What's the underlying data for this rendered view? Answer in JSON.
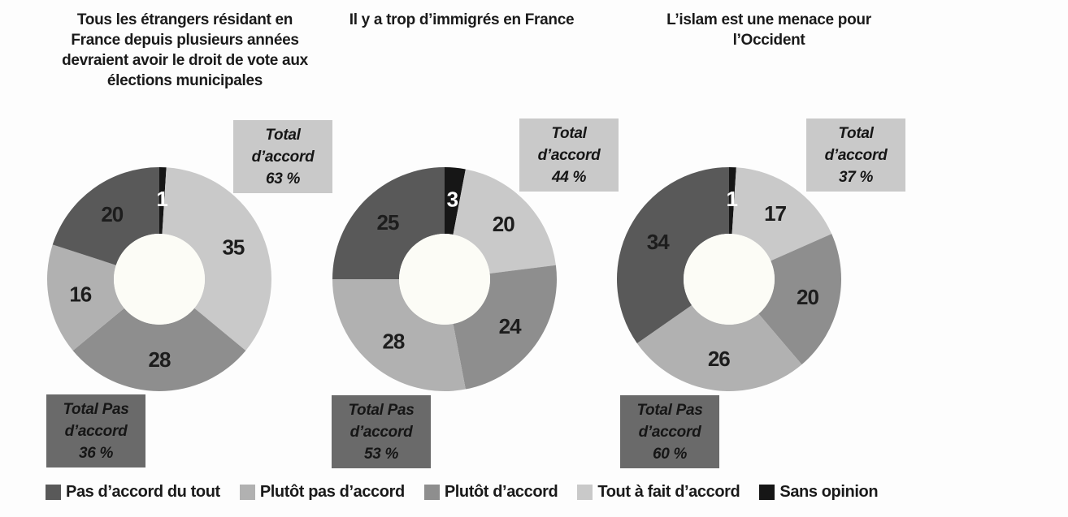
{
  "page": {
    "background": "#fdfdfd"
  },
  "colors": {
    "text": "#1a1a1a",
    "pas_daccord_du_tout": "#595959",
    "plutot_pas_daccord": "#b1b1b1",
    "plutot_daccord": "#8e8e8e",
    "tout_a_fait_daccord": "#c9c9c9",
    "sans_opinion": "#161616",
    "agree_box_bg": "#c9c9c9",
    "disagree_box_bg": "#6a6a6a",
    "donut_hole": "#fcfcf6",
    "slice_label_dark": "#1d1d1d",
    "slice_label_light": "#ffffff"
  },
  "legend": {
    "items": [
      {
        "label": "Pas d’accord du tout",
        "color_key": "pas_daccord_du_tout"
      },
      {
        "label": "Plutôt pas d’accord",
        "color_key": "plutot_pas_daccord"
      },
      {
        "label": "Plutôt d’accord",
        "color_key": "plutot_daccord"
      },
      {
        "label": "Tout à fait d’accord",
        "color_key": "tout_a_fait_daccord"
      },
      {
        "label": "Sans opinion",
        "color_key": "sans_opinion"
      }
    ]
  },
  "chart_data": [
    {
      "type": "pie",
      "subtype": "donut",
      "unit": "%",
      "title": "Tous les étrangers résidant en France depuis plusieurs années devraient avoir le droit de vote aux élections municipales",
      "title_lines": [
        "Tous les étrangers résidant en",
        "France depuis plusieurs années",
        "devraient avoir le droit de vote aux",
        "élections municipales"
      ],
      "slices": [
        {
          "category": "Sans opinion",
          "value": 1,
          "color_key": "sans_opinion",
          "label_light": true
        },
        {
          "category": "Tout à fait d’accord",
          "value": 35,
          "color_key": "tout_a_fait_daccord"
        },
        {
          "category": "Plutôt d’accord",
          "value": 28,
          "color_key": "plutot_daccord"
        },
        {
          "category": "Plutôt pas d’accord",
          "value": 16,
          "color_key": "plutot_pas_daccord"
        },
        {
          "category": "Pas d’accord du tout",
          "value": 20,
          "color_key": "pas_daccord_du_tout"
        }
      ],
      "agree_box": {
        "line1": "Total",
        "line2": "d’accord",
        "line3": "63 %"
      },
      "disagree_box": {
        "line1": "Total Pas",
        "line2": "d’accord",
        "line3": "36 %"
      }
    },
    {
      "type": "pie",
      "subtype": "donut",
      "unit": "%",
      "title": "Il y a trop d’immigrés en France",
      "title_lines": [
        "Il y a trop d’immigrés en France"
      ],
      "slices": [
        {
          "category": "Sans opinion",
          "value": 3,
          "color_key": "sans_opinion",
          "label_light": true
        },
        {
          "category": "Tout à fait d’accord",
          "value": 20,
          "color_key": "tout_a_fait_daccord"
        },
        {
          "category": "Plutôt d’accord",
          "value": 24,
          "color_key": "plutot_daccord"
        },
        {
          "category": "Plutôt pas d’accord",
          "value": 28,
          "color_key": "plutot_pas_daccord"
        },
        {
          "category": "Pas d’accord du tout",
          "value": 25,
          "color_key": "pas_daccord_du_tout"
        }
      ],
      "agree_box": {
        "line1": "Total",
        "line2": "d’accord",
        "line3": "44 %"
      },
      "disagree_box": {
        "line1": "Total Pas",
        "line2": "d’accord",
        "line3": "53 %"
      }
    },
    {
      "type": "pie",
      "subtype": "donut",
      "unit": "%",
      "title": "L’islam est une menace pour l’Occident",
      "title_lines": [
        "L’islam est une menace pour",
        "l’Occident"
      ],
      "slices": [
        {
          "category": "Sans opinion",
          "value": 1,
          "color_key": "sans_opinion",
          "label_light": true
        },
        {
          "category": "Tout à fait d’accord",
          "value": 17,
          "color_key": "tout_a_fait_daccord"
        },
        {
          "category": "Plutôt d’accord",
          "value": 20,
          "color_key": "plutot_daccord"
        },
        {
          "category": "Plutôt pas d’accord",
          "value": 26,
          "color_key": "plutot_pas_daccord"
        },
        {
          "category": "Pas d’accord du tout",
          "value": 34,
          "color_key": "pas_daccord_du_tout"
        }
      ],
      "agree_box": {
        "line1": "Total",
        "line2": "d’accord",
        "line3": "37 %"
      },
      "disagree_box": {
        "line1": "Total Pas",
        "line2": "d’accord",
        "line3": "60 %"
      }
    }
  ]
}
